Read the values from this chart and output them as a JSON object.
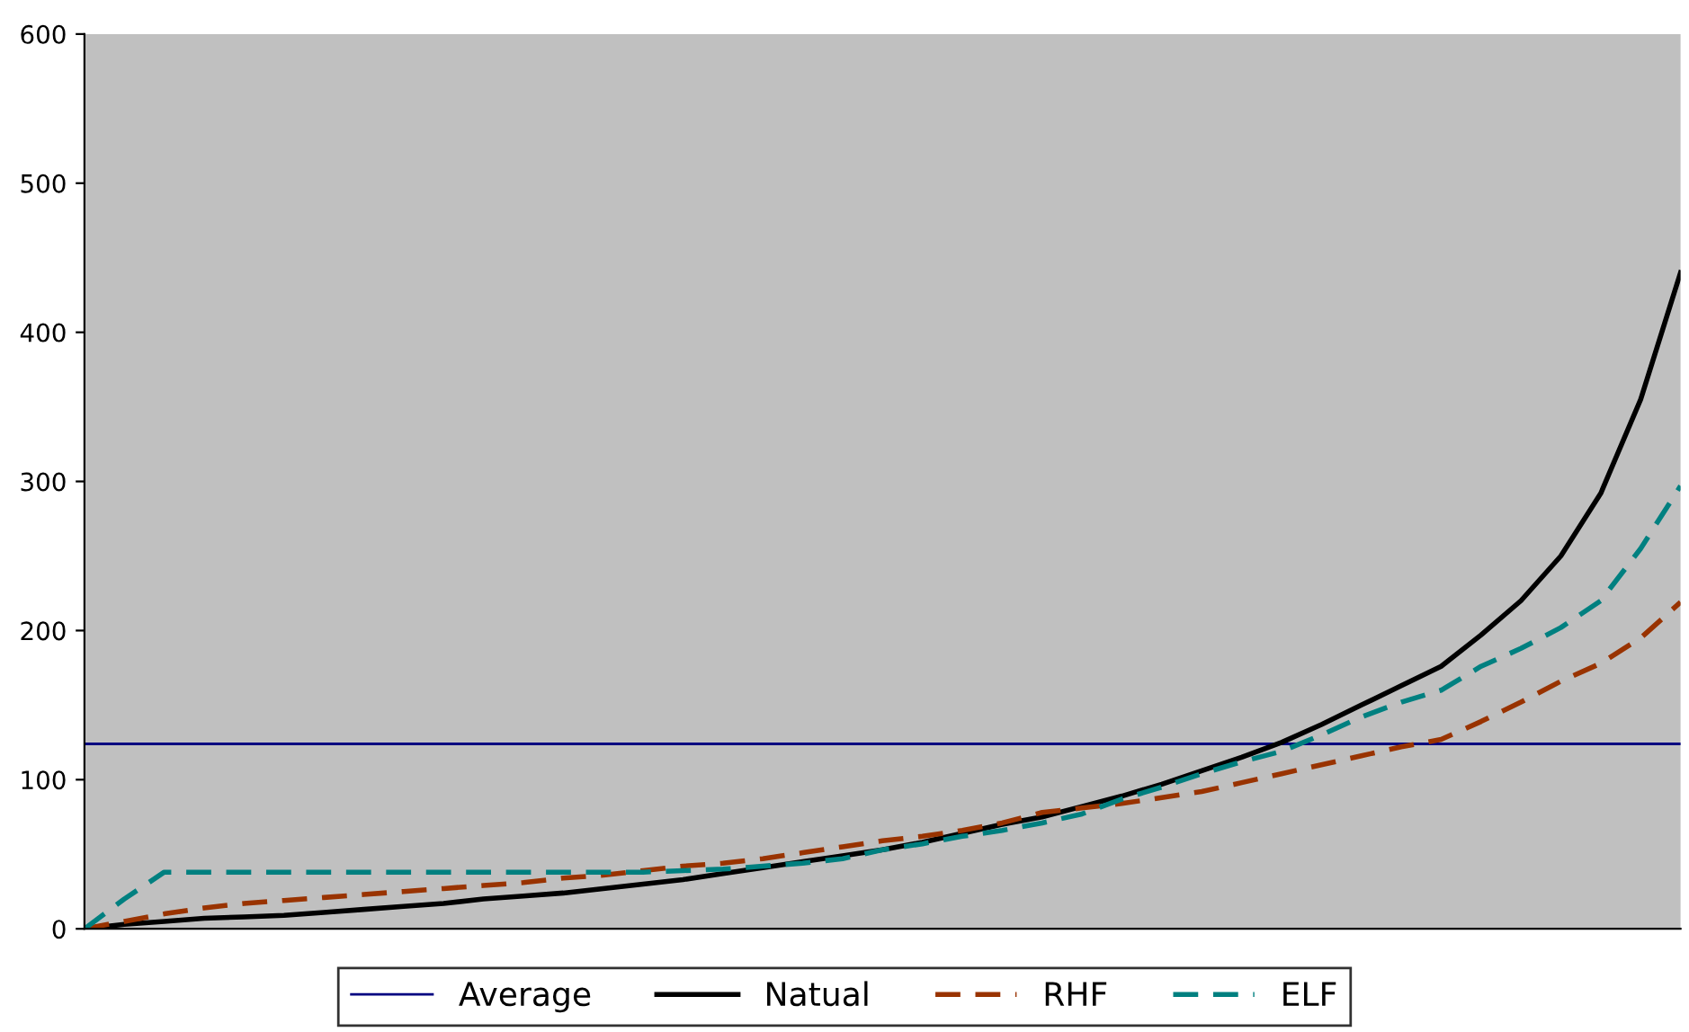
{
  "chart_data": {
    "type": "line",
    "categories": [
      null,
      null,
      null,
      null,
      null,
      null,
      null,
      null,
      null,
      null,
      null,
      null,
      null,
      null,
      null,
      null,
      null,
      null,
      null,
      null,
      null,
      null,
      null,
      null,
      null,
      null,
      null,
      null,
      null,
      null,
      null,
      null,
      null,
      null,
      null,
      null,
      null,
      null,
      null,
      null,
      null
    ],
    "series": [
      {
        "name": "Average",
        "color": "#000080",
        "line_style": "solid",
        "values": [
          124,
          124,
          124,
          124,
          124,
          124,
          124,
          124,
          124,
          124,
          124,
          124,
          124,
          124,
          124,
          124,
          124,
          124,
          124,
          124,
          124,
          124,
          124,
          124,
          124,
          124,
          124,
          124,
          124,
          124,
          124,
          124,
          124,
          124,
          124,
          124,
          124,
          124,
          124,
          124,
          124
        ]
      },
      {
        "name": "Natual",
        "color": "#000000",
        "line_style": "solid",
        "values": [
          0,
          3,
          5,
          7,
          8,
          9,
          11,
          13,
          15,
          17,
          20,
          22,
          24,
          27,
          30,
          33,
          37,
          41,
          45,
          49,
          53,
          58,
          64,
          70,
          75,
          82,
          89,
          97,
          106,
          115,
          125,
          137,
          150,
          163,
          176,
          197,
          220,
          250,
          292,
          355,
          440
        ]
      },
      {
        "name": "RHF",
        "color": "#993300",
        "line_style": "dashed",
        "values": [
          0,
          5,
          10,
          14,
          17,
          19,
          21,
          23,
          25,
          27,
          29,
          31,
          34,
          36,
          39,
          42,
          44,
          47,
          51,
          55,
          59,
          62,
          66,
          71,
          78,
          81,
          84,
          88,
          92,
          98,
          104,
          110,
          116,
          122,
          127,
          139,
          152,
          166,
          178,
          195,
          219
        ]
      },
      {
        "name": "ELF",
        "color": "#008080",
        "line_style": "dashed",
        "values": [
          0,
          20,
          38,
          38,
          38,
          38,
          38,
          38,
          38,
          38,
          38,
          38,
          38,
          38,
          38,
          39,
          40,
          42,
          44,
          47,
          53,
          57,
          62,
          66,
          71,
          77,
          87,
          95,
          104,
          112,
          119,
          130,
          142,
          152,
          160,
          176,
          188,
          202,
          220,
          255,
          297
        ]
      }
    ],
    "ylim": [
      0,
      600
    ],
    "yticks": [
      0,
      100,
      200,
      300,
      400,
      500,
      600
    ],
    "grid": false,
    "legend": "bottom",
    "tick_labels": "y",
    "marker": "none"
  }
}
